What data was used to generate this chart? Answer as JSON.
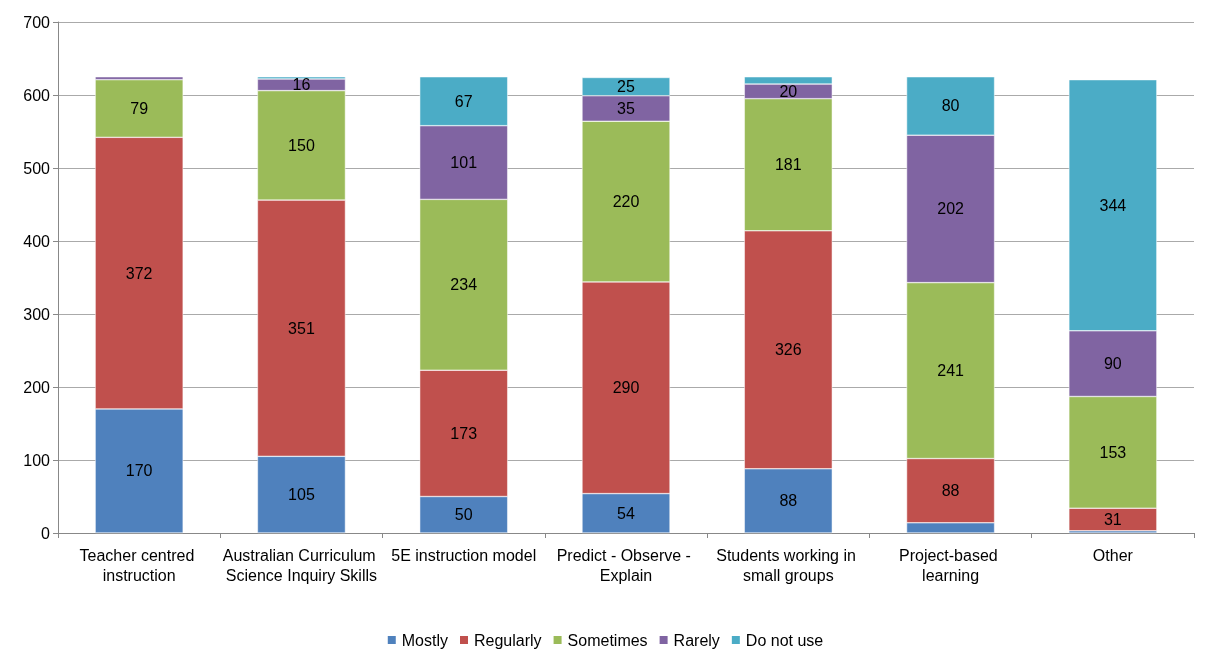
{
  "chart_data": {
    "type": "bar",
    "stacked": true,
    "categories": [
      "Teacher centred instruction",
      "Australian Curriculum Science Inquiry Skills",
      "5E instruction model",
      "Predict - Observe - Explain",
      "Students working in small groups",
      "Project-based learning",
      "Other"
    ],
    "series": [
      {
        "name": "Mostly",
        "color": "#4f81bd",
        "values": [
          170,
          105,
          50,
          54,
          88,
          14,
          3
        ],
        "value_labels": [
          "170",
          "105",
          "50",
          "54",
          "88",
          null,
          null
        ]
      },
      {
        "name": "Regularly",
        "color": "#c0504d",
        "values": [
          372,
          351,
          173,
          290,
          326,
          88,
          31
        ],
        "value_labels": [
          "372",
          "351",
          "173",
          "290",
          "326",
          "88",
          "31"
        ]
      },
      {
        "name": "Sometimes",
        "color": "#9bbb59",
        "values": [
          79,
          150,
          234,
          220,
          181,
          241,
          153
        ],
        "value_labels": [
          "79",
          "150",
          "234",
          "220",
          "181",
          "241",
          "153"
        ]
      },
      {
        "name": "Rarely",
        "color": "#8064a2",
        "values": [
          4,
          16,
          101,
          35,
          20,
          202,
          90
        ],
        "value_labels": [
          null,
          "16",
          "101",
          "35",
          "20",
          "202",
          "90"
        ]
      },
      {
        "name": "Do not use",
        "color": "#4bacc6",
        "values": [
          null,
          3,
          67,
          25,
          10,
          80,
          344
        ],
        "value_labels": [
          null,
          null,
          "67",
          "25",
          null,
          "80",
          "344"
        ]
      }
    ],
    "ylim": [
      0,
      700
    ],
    "yticks": [
      0,
      100,
      200,
      300,
      400,
      500,
      600,
      700
    ],
    "grid": "y",
    "legend": "bottom"
  }
}
